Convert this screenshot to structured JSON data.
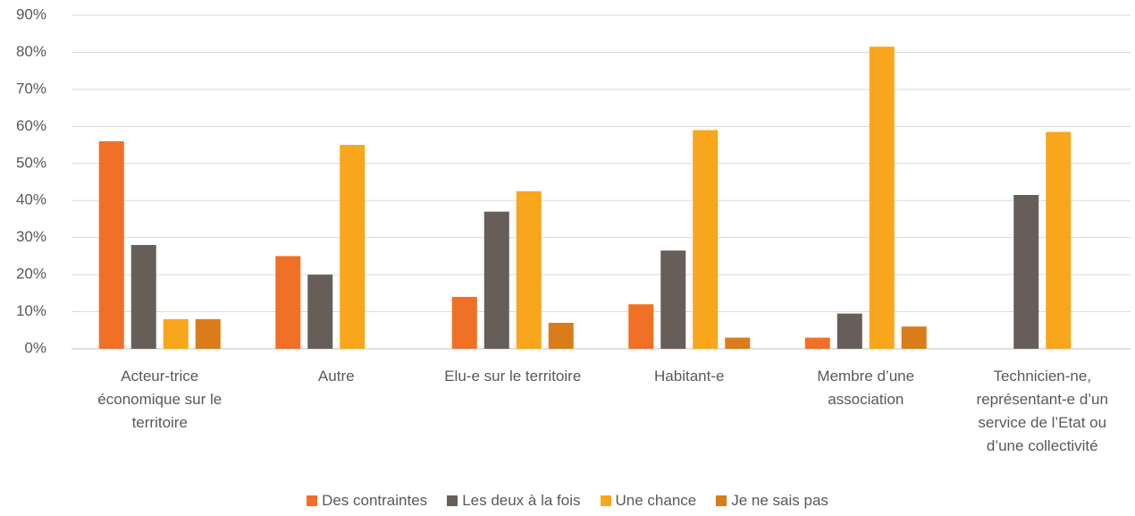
{
  "chart_data": {
    "type": "bar",
    "categories": [
      "Acteur-trice économique sur le territoire",
      "Autre",
      "Elu-e sur le territoire",
      "Habitant-e",
      "Membre d’une association",
      "Technicien-ne, représentant-e d’un service de l’Etat ou d’une collectivité"
    ],
    "series": [
      {
        "name": "Des contraintes",
        "color": "#f07025",
        "values": [
          56,
          25,
          14,
          12,
          3,
          null
        ]
      },
      {
        "name": "Les deux à la fois",
        "color": "#675e5a",
        "values": [
          28,
          20,
          37,
          26.5,
          9.5,
          41.5
        ]
      },
      {
        "name": "Une chance",
        "color": "#f8a61c",
        "values": [
          8,
          55,
          42.5,
          59,
          81.5,
          58.5
        ]
      },
      {
        "name": "Je ne sais pas",
        "color": "#d97c1a",
        "values": [
          8,
          null,
          7,
          3,
          6,
          null
        ]
      }
    ],
    "ylim": [
      0,
      90
    ],
    "yticks": [
      {
        "value": 0,
        "label": "0%"
      },
      {
        "value": 10,
        "label": "10%"
      },
      {
        "value": 20,
        "label": "20%"
      },
      {
        "value": 30,
        "label": "30%"
      },
      {
        "value": 40,
        "label": "40%"
      },
      {
        "value": 50,
        "label": "50%"
      },
      {
        "value": 60,
        "label": "60%"
      },
      {
        "value": 70,
        "label": "70%"
      },
      {
        "value": 80,
        "label": "80%"
      },
      {
        "value": 90,
        "label": "90%"
      }
    ],
    "grid": true,
    "legend": "bottom"
  }
}
